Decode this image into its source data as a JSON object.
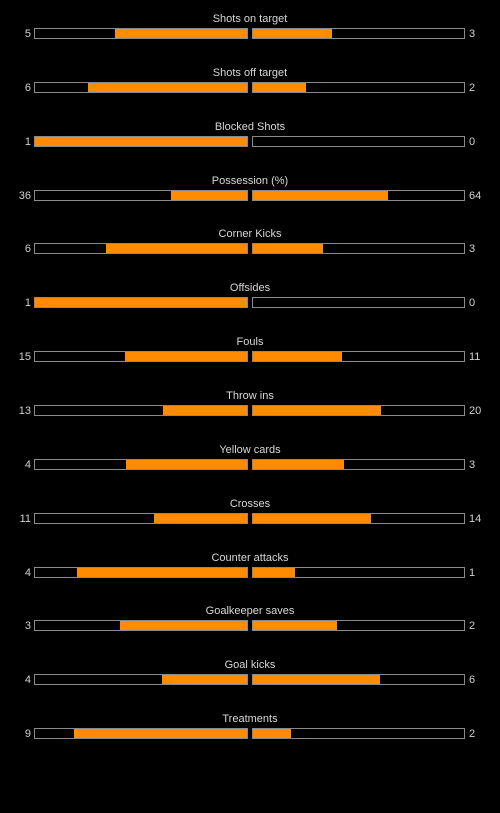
{
  "colors": {
    "background": "#000000",
    "bar_fill": "#ff8c00",
    "bar_border": "#8a8a8a",
    "text": "#d0d0d0"
  },
  "stats": [
    {
      "label": "Shots on target",
      "home": "5",
      "away": "3",
      "home_fill": 0.625,
      "away_fill": 0.375
    },
    {
      "label": "Shots off target",
      "home": "6",
      "away": "2",
      "home_fill": 0.75,
      "away_fill": 0.25
    },
    {
      "label": "Blocked Shots",
      "home": "1",
      "away": "0",
      "home_fill": 1.0,
      "away_fill": 0.0
    },
    {
      "label": "Possession (%)",
      "home": "36",
      "away": "64",
      "home_fill": 0.36,
      "away_fill": 0.64
    },
    {
      "label": "Corner Kicks",
      "home": "6",
      "away": "3",
      "home_fill": 0.667,
      "away_fill": 0.333
    },
    {
      "label": "Offsides",
      "home": "1",
      "away": "0",
      "home_fill": 1.0,
      "away_fill": 0.0
    },
    {
      "label": "Fouls",
      "home": "15",
      "away": "11",
      "home_fill": 0.577,
      "away_fill": 0.423
    },
    {
      "label": "Throw ins",
      "home": "13",
      "away": "20",
      "home_fill": 0.394,
      "away_fill": 0.606
    },
    {
      "label": "Yellow cards",
      "home": "4",
      "away": "3",
      "home_fill": 0.571,
      "away_fill": 0.429
    },
    {
      "label": "Crosses",
      "home": "11",
      "away": "14",
      "home_fill": 0.44,
      "away_fill": 0.56
    },
    {
      "label": "Counter attacks",
      "home": "4",
      "away": "1",
      "home_fill": 0.8,
      "away_fill": 0.2
    },
    {
      "label": "Goalkeeper saves",
      "home": "3",
      "away": "2",
      "home_fill": 0.6,
      "away_fill": 0.4
    },
    {
      "label": "Goal kicks",
      "home": "4",
      "away": "6",
      "home_fill": 0.4,
      "away_fill": 0.6
    },
    {
      "label": "Treatments",
      "home": "9",
      "away": "2",
      "home_fill": 0.818,
      "away_fill": 0.182
    }
  ]
}
